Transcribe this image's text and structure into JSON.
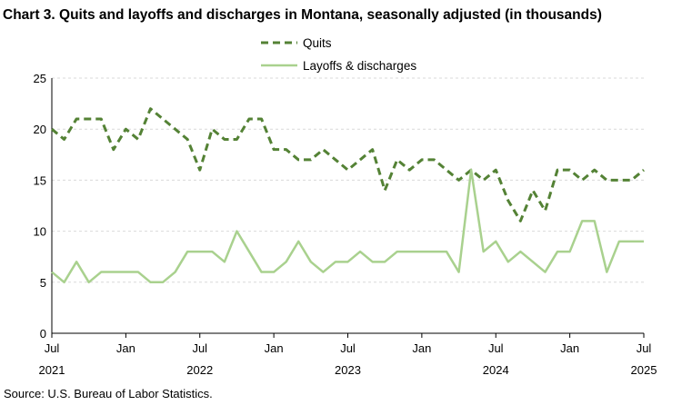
{
  "chart_data": {
    "type": "line",
    "title": "Chart 3. Quits and layoffs and discharges in Montana, seasonally adjusted (in thousands)",
    "source": "Source: U.S. Bureau of Labor Statistics.",
    "ylim": [
      0,
      25
    ],
    "yticks": [
      "0",
      "5",
      "10",
      "15",
      "20",
      "25"
    ],
    "grid": true,
    "legend_position": "top-center",
    "x_start": "2021-07",
    "x_end": "2025-07",
    "xticks": [
      {
        "month": "Jul",
        "year": "2021"
      },
      {
        "month": "Jan",
        "year": ""
      },
      {
        "month": "Jul",
        "year": "2022"
      },
      {
        "month": "Jan",
        "year": ""
      },
      {
        "month": "Jul",
        "year": "2023"
      },
      {
        "month": "Jan",
        "year": ""
      },
      {
        "month": "Jul",
        "year": "2024"
      },
      {
        "month": "Jan",
        "year": ""
      },
      {
        "month": "Jul",
        "year": "2025"
      }
    ],
    "series": [
      {
        "name": "Quits",
        "color": "#548235",
        "style": "dashed",
        "values": [
          20,
          19,
          21,
          21,
          21,
          18,
          20,
          19,
          22,
          21,
          20,
          19,
          16,
          20,
          19,
          19,
          21,
          21,
          18,
          18,
          17,
          17,
          18,
          17,
          16,
          17,
          18,
          14,
          17,
          16,
          17,
          17,
          16,
          15,
          16,
          15,
          16,
          13,
          11,
          14,
          12,
          16,
          16,
          15,
          16,
          15,
          15,
          15,
          16
        ]
      },
      {
        "name": "Layoffs & discharges",
        "color": "#A9D18E",
        "style": "solid",
        "values": [
          6,
          5,
          7,
          5,
          6,
          6,
          6,
          6,
          5,
          5,
          6,
          8,
          8,
          8,
          7,
          10,
          8,
          6,
          6,
          7,
          9,
          7,
          6,
          7,
          7,
          8,
          7,
          7,
          8,
          8,
          8,
          8,
          8,
          6,
          16,
          8,
          9,
          7,
          8,
          7,
          6,
          8,
          8,
          11,
          11,
          6,
          9,
          9,
          9
        ]
      }
    ]
  }
}
